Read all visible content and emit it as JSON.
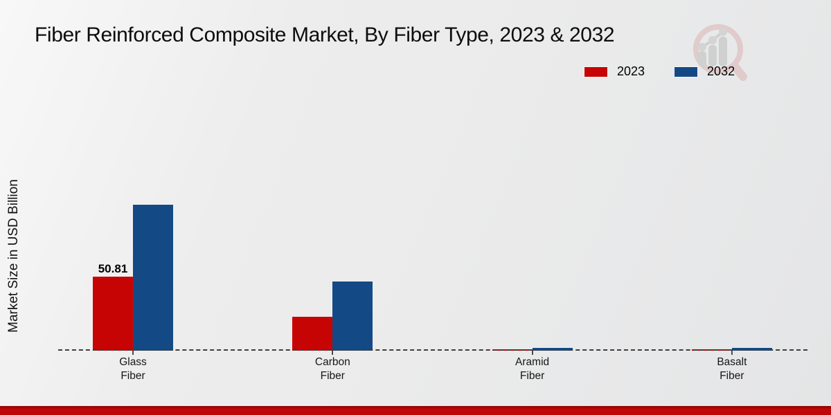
{
  "chart_data": {
    "type": "bar",
    "title": "Fiber Reinforced Composite Market, By Fiber Type, 2023 & 2032",
    "xlabel": "",
    "ylabel": "Market Size in USD Billion",
    "categories": [
      "Glass Fiber",
      "Carbon Fiber",
      "Aramid Fiber",
      "Basalt Fiber"
    ],
    "series": [
      {
        "name": "2023",
        "color": "#c70404",
        "values": [
          50.81,
          23.3,
          0.9,
          0.7
        ],
        "value_labels": [
          "50.81",
          "",
          "",
          ""
        ]
      },
      {
        "name": "2032",
        "color": "#134a85",
        "values": [
          100.2,
          47.5,
          1.7,
          2.1
        ],
        "value_labels": [
          "",
          "",
          "",
          ""
        ]
      }
    ],
    "ylim": [
      0,
      170
    ],
    "grid": false,
    "legend_position": "top-right",
    "baseline_style": "dashed",
    "accent_footer_color": "#c10707",
    "watermark_icon": "magnifier-bar-chart-logo"
  }
}
